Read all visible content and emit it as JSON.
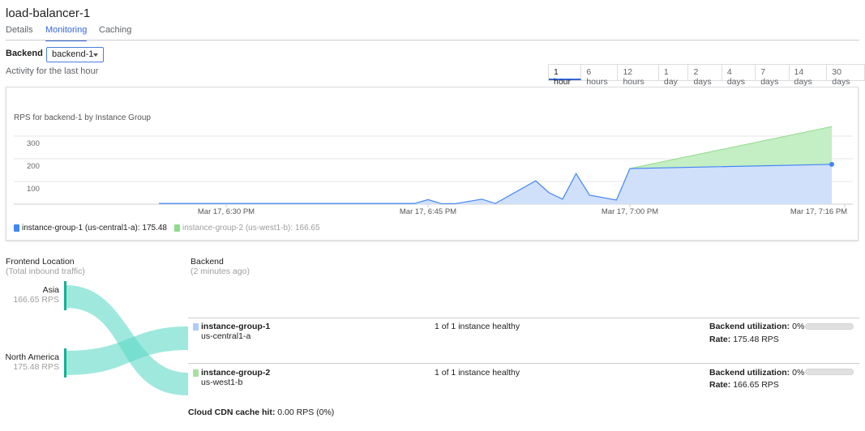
{
  "title": "load-balancer-1",
  "tabs": [
    {
      "label": "Details"
    },
    {
      "label": "Monitoring",
      "active": true
    },
    {
      "label": "Caching"
    }
  ],
  "backend": {
    "label": "Backend",
    "selected": "backend-1"
  },
  "activity": "Activity for the last hour",
  "ranges": [
    "1 hour",
    "6 hours",
    "12 hours",
    "1 day",
    "2 days",
    "4 days",
    "7 days",
    "14 days",
    "30 days"
  ],
  "active_range": "1 hour",
  "chart_data": {
    "type": "area",
    "stacked": true,
    "title": "RPS for backend-1 by Instance Group",
    "ylim": [
      0,
      340
    ],
    "yticks": [
      "100",
      "200",
      "300"
    ],
    "xticks": [
      "Mar 17, 6:30 PM",
      "Mar 17, 6:45 PM",
      "Mar 17, 7:00 PM",
      "Mar 17, 7:16 PM"
    ],
    "grid": true,
    "legend_position": "bottom-left",
    "series": [
      {
        "name": "instance-group-1 (us-central1-a)",
        "color": "#4285f4",
        "fill": "#d0e0fa",
        "legend_value": "175.48",
        "x": [
          "6:25",
          "6:44",
          "6:45",
          "6:46",
          "6:47",
          "6:49",
          "6:50",
          "6:53",
          "6:54",
          "6:55",
          "6:56",
          "6:57",
          "6:59",
          "7:00",
          "7:15"
        ],
        "values": [
          3,
          3,
          20,
          2,
          2,
          22,
          3,
          103,
          50,
          22,
          135,
          40,
          18,
          157,
          175.48
        ]
      },
      {
        "name": "instance-group-2 (us-west1-b)",
        "color": "#8fdc8a",
        "fill": "#c4eec4",
        "legend_value": "166.65",
        "x": [
          "7:00",
          "7:15"
        ],
        "values": [
          0,
          166.65
        ]
      }
    ]
  },
  "frontend": {
    "title": "Frontend Location",
    "subtitle": "(Total inbound traffic)",
    "locations": [
      {
        "name": "Asia",
        "rps": "166.65 RPS"
      },
      {
        "name": "North America",
        "rps": "175.48 RPS"
      }
    ]
  },
  "backend_panel": {
    "title": "Backend",
    "subtitle": "(2 minutes ago)",
    "groups": [
      {
        "name": "instance-group-1",
        "zone": "us-central1-a",
        "health": "1 of 1 instance healthy",
        "util_label": "Backend utilization:",
        "util": "0%",
        "rate_label": "Rate:",
        "rate": "175.48 RPS",
        "color": "#aecbfa",
        "util_fraction": 0
      },
      {
        "name": "instance-group-2",
        "zone": "us-west1-b",
        "health": "1 of 1 instance healthy",
        "util_label": "Backend utilization:",
        "util": "0%",
        "rate_label": "Rate:",
        "rate": "166.65 RPS",
        "color": "#a8e0a0",
        "util_fraction": 0
      }
    ],
    "cdn_label": "Cloud CDN cache hit:",
    "cdn_value": "0.00 RPS (0%)"
  }
}
